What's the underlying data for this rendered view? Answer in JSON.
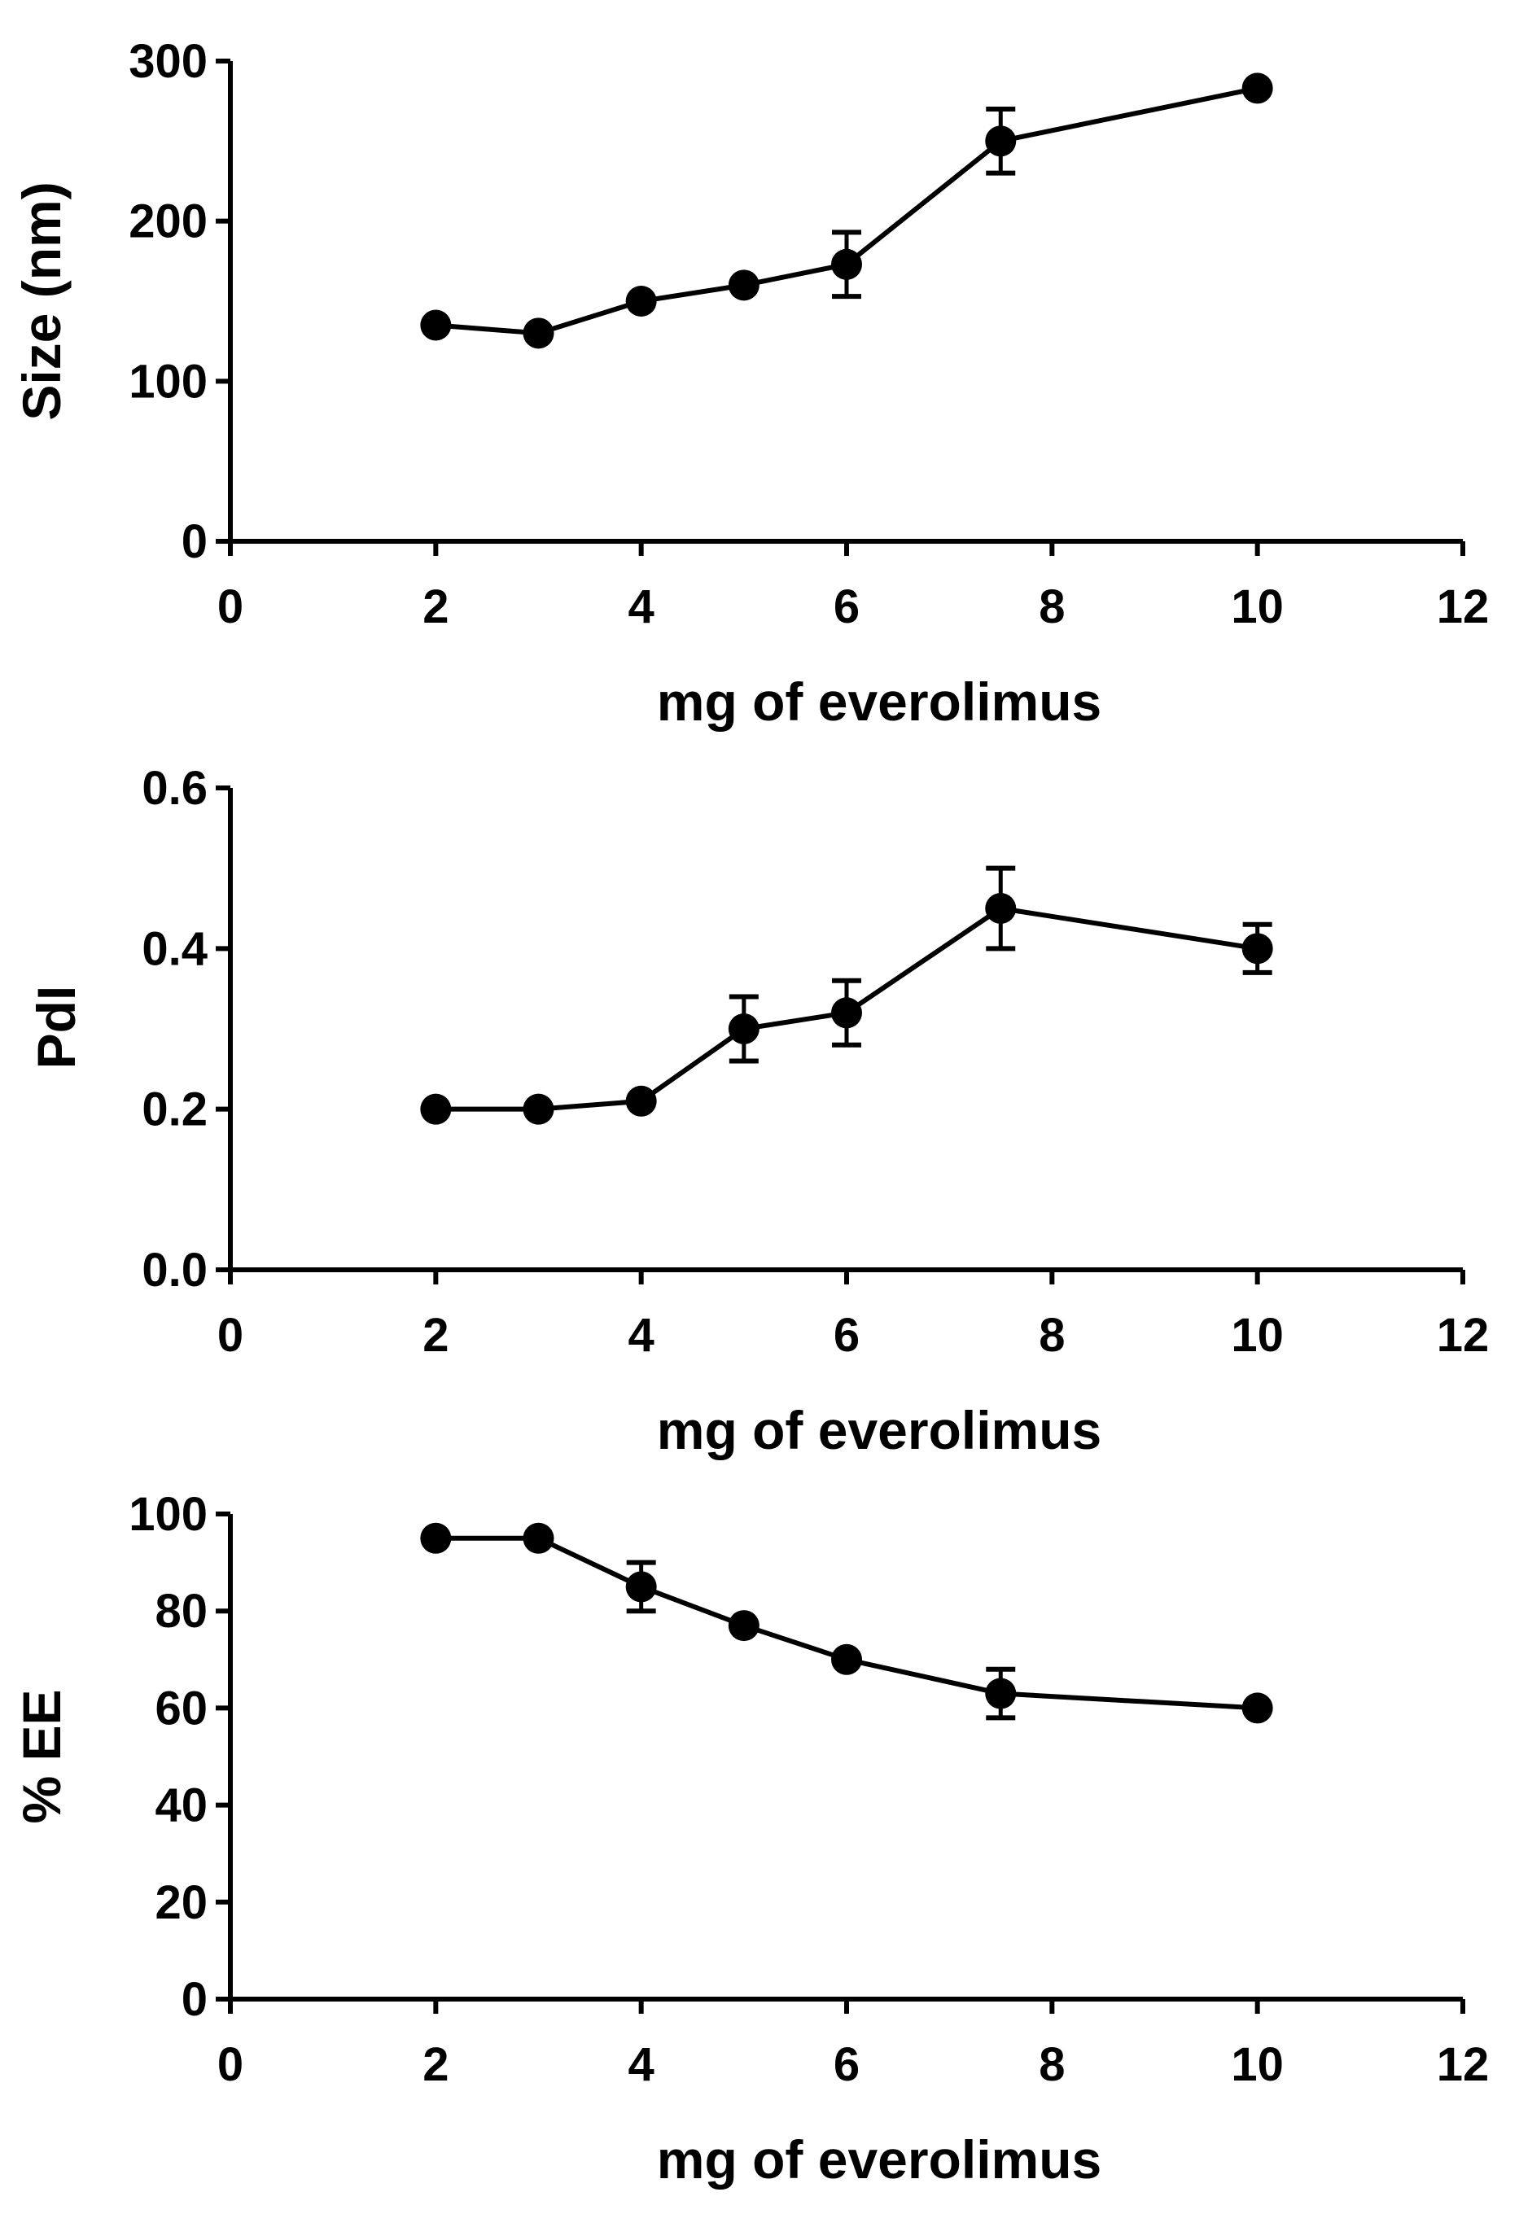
{
  "chart_data": [
    {
      "type": "line",
      "title": "",
      "xlabel": "mg of everolimus",
      "ylabel": "Size (nm)",
      "xlim": [
        0,
        12
      ],
      "ylim": [
        0,
        300
      ],
      "xticks": [
        0,
        2,
        4,
        6,
        8,
        10,
        12
      ],
      "yticks": [
        0,
        100,
        200,
        300
      ],
      "ytick_labels": [
        "0",
        "100",
        "200",
        "300"
      ],
      "grid": false,
      "legend": "none",
      "series": [
        {
          "name": "Size",
          "x": [
            2,
            3,
            4,
            5,
            6,
            7.5,
            10
          ],
          "y": [
            135,
            130,
            150,
            160,
            173,
            250,
            283
          ],
          "err": [
            0,
            0,
            0,
            0,
            20,
            20,
            0
          ]
        }
      ]
    },
    {
      "type": "line",
      "title": "",
      "xlabel": "mg of everolimus",
      "ylabel": "PdI",
      "xlim": [
        0,
        12
      ],
      "ylim": [
        0,
        0.6
      ],
      "xticks": [
        0,
        2,
        4,
        6,
        8,
        10,
        12
      ],
      "yticks": [
        0,
        0.2,
        0.4,
        0.6
      ],
      "ytick_labels": [
        "0.0",
        "0.2",
        "0.4",
        "0.6"
      ],
      "grid": false,
      "legend": "none",
      "series": [
        {
          "name": "PdI",
          "x": [
            2,
            3,
            4,
            5,
            6,
            7.5,
            10
          ],
          "y": [
            0.2,
            0.2,
            0.21,
            0.3,
            0.32,
            0.45,
            0.4
          ],
          "err": [
            0,
            0,
            0,
            0.04,
            0.04,
            0.05,
            0.03
          ]
        }
      ]
    },
    {
      "type": "line",
      "title": "",
      "xlabel": "mg of everolimus",
      "ylabel": "% EE",
      "xlim": [
        0,
        12
      ],
      "ylim": [
        0,
        100
      ],
      "xticks": [
        0,
        2,
        4,
        6,
        8,
        10,
        12
      ],
      "yticks": [
        0,
        20,
        40,
        60,
        80,
        100
      ],
      "ytick_labels": [
        "0",
        "20",
        "40",
        "60",
        "80",
        "100"
      ],
      "grid": false,
      "legend": "none",
      "series": [
        {
          "name": "% EE",
          "x": [
            2,
            3,
            4,
            5,
            6,
            7.5,
            10
          ],
          "y": [
            95,
            95,
            85,
            77,
            70,
            63,
            60
          ],
          "err": [
            0,
            0,
            5,
            0,
            0,
            5,
            0
          ]
        }
      ]
    }
  ]
}
